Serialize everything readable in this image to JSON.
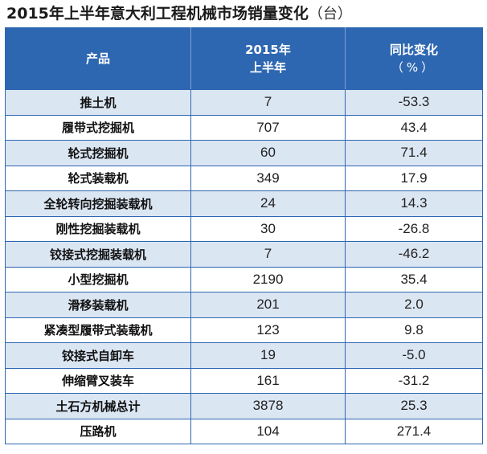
{
  "title": "2015年上半年意大利工程机械市场销量变化",
  "unit": "（台）",
  "headers": {
    "product": "产品",
    "sales_line1": "2015年",
    "sales_line2": "上半年",
    "change_line1": "同比变化",
    "change_line2": "（%）"
  },
  "rows": [
    {
      "product": "推土机",
      "sales": "7",
      "change": "-53.3"
    },
    {
      "product": "履带式挖掘机",
      "sales": "707",
      "change": "43.4"
    },
    {
      "product": "轮式挖掘机",
      "sales": "60",
      "change": "71.4"
    },
    {
      "product": "轮式装载机",
      "sales": "349",
      "change": "17.9"
    },
    {
      "product": "全轮转向挖掘装载机",
      "sales": "24",
      "change": "14.3"
    },
    {
      "product": "刚性挖掘装载机",
      "sales": "30",
      "change": "-26.8"
    },
    {
      "product": "铰接式挖掘装载机",
      "sales": "7",
      "change": "-46.2"
    },
    {
      "product": "小型挖掘机",
      "sales": "2190",
      "change": "35.4"
    },
    {
      "product": "滑移装载机",
      "sales": "201",
      "change": "2.0"
    },
    {
      "product": "紧凑型履带式装载机",
      "sales": "123",
      "change": "9.8"
    },
    {
      "product": "铰接式自卸车",
      "sales": "19",
      "change": "-5.0"
    },
    {
      "product": "伸缩臂叉装车",
      "sales": "161",
      "change": "-31.2"
    },
    {
      "product": "土石方机械总计",
      "sales": "3878",
      "change": "25.3"
    },
    {
      "product": "压路机",
      "sales": "104",
      "change": "271.4"
    }
  ]
}
